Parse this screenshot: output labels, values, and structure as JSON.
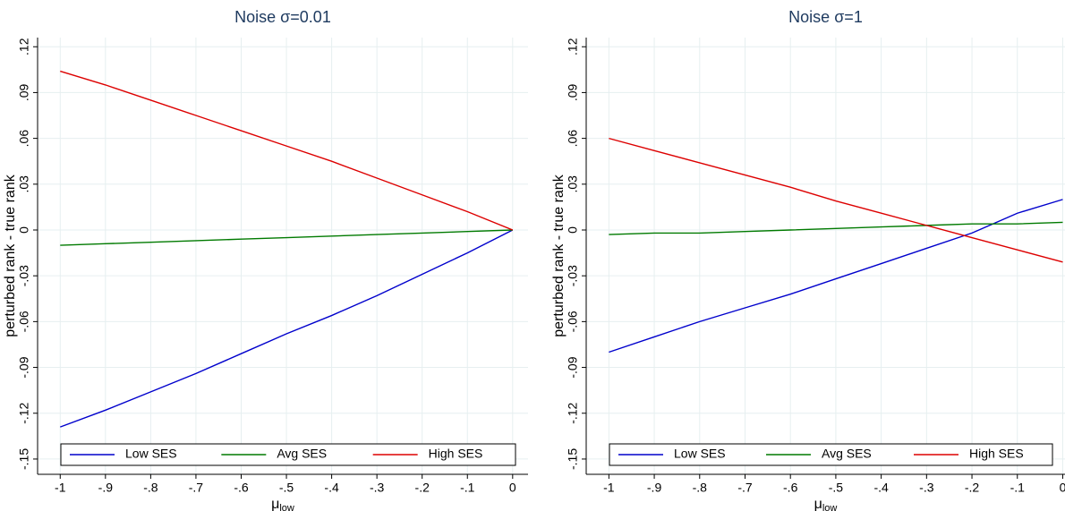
{
  "chart_data": [
    {
      "type": "line",
      "title": "Noise σ=0.01",
      "xlabel": "μ",
      "xlabel_subscript": "low",
      "ylabel": "perturbed rank - true rank",
      "x": [
        -1,
        -0.9,
        -0.8,
        -0.7,
        -0.6,
        -0.5,
        -0.4,
        -0.3,
        -0.2,
        -0.1,
        0
      ],
      "series": [
        {
          "name": "Low SES",
          "color": "#0000cc",
          "values": [
            -0.129,
            -0.118,
            -0.106,
            -0.094,
            -0.081,
            -0.068,
            -0.056,
            -0.043,
            -0.029,
            -0.015,
            0
          ]
        },
        {
          "name": "Avg SES",
          "color": "#007a00",
          "values": [
            -0.01,
            -0.009,
            -0.008,
            -0.007,
            -0.006,
            -0.005,
            -0.004,
            -0.003,
            -0.002,
            -0.001,
            0
          ]
        },
        {
          "name": "High SES",
          "color": "#dd0000",
          "values": [
            0.104,
            0.095,
            0.085,
            0.075,
            0.065,
            0.055,
            0.045,
            0.034,
            0.023,
            0.012,
            0
          ]
        }
      ],
      "xlim": [
        -1.05,
        0.034
      ],
      "xticks": [
        -1,
        {
          "value": -0.9,
          "label": "-.9"
        },
        {
          "value": -0.8,
          "label": "-.8"
        },
        {
          "value": -0.7,
          "label": "-.7"
        },
        {
          "value": -0.6,
          "label": "-.6"
        },
        {
          "value": -0.5,
          "label": "-.5"
        },
        {
          "value": -0.4,
          "label": "-.4"
        },
        {
          "value": -0.3,
          "label": "-.3"
        },
        {
          "value": -0.2,
          "label": "-.2"
        },
        {
          "value": -0.1,
          "label": "-.1"
        },
        0
      ],
      "ylim": [
        -0.16,
        0.126
      ],
      "yticks": [
        {
          "value": -0.15,
          "label": "-.15"
        },
        {
          "value": -0.12,
          "label": "-.12"
        },
        {
          "value": -0.09,
          "label": "-.09"
        },
        {
          "value": -0.06,
          "label": "-.06"
        },
        {
          "value": -0.03,
          "label": "-.03"
        },
        0,
        {
          "value": 0.03,
          "label": ".03"
        },
        {
          "value": 0.06,
          "label": ".06"
        },
        {
          "value": 0.09,
          "label": ".09"
        },
        {
          "value": 0.12,
          "label": ".12"
        }
      ],
      "grid": true,
      "legend": "bottom"
    },
    {
      "type": "line",
      "title": "Noise σ=1",
      "xlabel": "μ",
      "xlabel_subscript": "low",
      "ylabel": "perturbed rank - true rank",
      "x": [
        -1,
        -0.9,
        -0.8,
        -0.7,
        -0.6,
        -0.5,
        -0.4,
        -0.3,
        -0.2,
        -0.1,
        0
      ],
      "series": [
        {
          "name": "Low SES",
          "color": "#0000cc",
          "values": [
            -0.08,
            -0.07,
            -0.06,
            -0.051,
            -0.042,
            -0.032,
            -0.022,
            -0.012,
            -0.002,
            0.011,
            0.02
          ]
        },
        {
          "name": "Avg SES",
          "color": "#007a00",
          "values": [
            -0.003,
            -0.002,
            -0.002,
            -0.001,
            0,
            0.001,
            0.002,
            0.003,
            0.004,
            0.004,
            0.005
          ]
        },
        {
          "name": "High SES",
          "color": "#dd0000",
          "values": [
            0.06,
            0.052,
            0.044,
            0.036,
            0.028,
            0.019,
            0.011,
            0.003,
            -0.005,
            -0.013,
            -0.021
          ]
        }
      ],
      "xlim": [
        -1.05,
        0.005
      ],
      "xticks": [
        -1,
        {
          "value": -0.9,
          "label": "-.9"
        },
        {
          "value": -0.8,
          "label": "-.8"
        },
        {
          "value": -0.7,
          "label": "-.7"
        },
        {
          "value": -0.6,
          "label": "-.6"
        },
        {
          "value": -0.5,
          "label": "-.5"
        },
        {
          "value": -0.4,
          "label": "-.4"
        },
        {
          "value": -0.3,
          "label": "-.3"
        },
        {
          "value": -0.2,
          "label": "-.2"
        },
        {
          "value": -0.1,
          "label": "-.1"
        },
        0
      ],
      "ylim": [
        -0.16,
        0.126
      ],
      "yticks": [
        {
          "value": -0.15,
          "label": "-.15"
        },
        {
          "value": -0.12,
          "label": "-.12"
        },
        {
          "value": -0.09,
          "label": "-.09"
        },
        {
          "value": -0.06,
          "label": "-.06"
        },
        {
          "value": -0.03,
          "label": "-.03"
        },
        0,
        {
          "value": 0.03,
          "label": ".03"
        },
        {
          "value": 0.06,
          "label": ".06"
        },
        {
          "value": 0.09,
          "label": ".09"
        },
        {
          "value": 0.12,
          "label": ".12"
        }
      ],
      "grid": true,
      "legend": "bottom"
    }
  ]
}
